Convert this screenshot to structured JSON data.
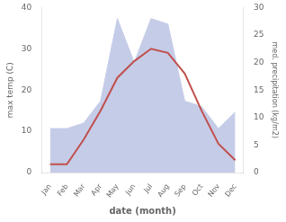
{
  "chart_data": {
    "type": "line",
    "categories": [
      "Jan",
      "Feb",
      "Mar",
      "Apr",
      "May",
      "Jun",
      "Jul",
      "Aug",
      "Sep",
      "Oct",
      "Nov",
      "Dec"
    ],
    "series": [
      {
        "type": "area",
        "axis": "y2",
        "color": "#c5cce8",
        "values": [
          8,
          8,
          9,
          13,
          28,
          20,
          28,
          27,
          13,
          12,
          8,
          11
        ]
      },
      {
        "type": "line",
        "color": "#c0504d",
        "values": [
          2,
          2,
          8,
          15,
          23,
          27,
          30,
          29,
          24,
          15,
          7,
          3
        ]
      }
    ],
    "xlabel": "date (month)",
    "ylabel": "max temp (C)",
    "y2label": "med. precipitation (kg/m2)",
    "ylim": [
      0,
      40
    ],
    "yticks": [
      0,
      10,
      20,
      30,
      40
    ],
    "y2lim": [
      0,
      30
    ],
    "y2ticks": [
      0,
      5,
      10,
      15,
      20,
      25,
      30
    ],
    "grid": false
  }
}
